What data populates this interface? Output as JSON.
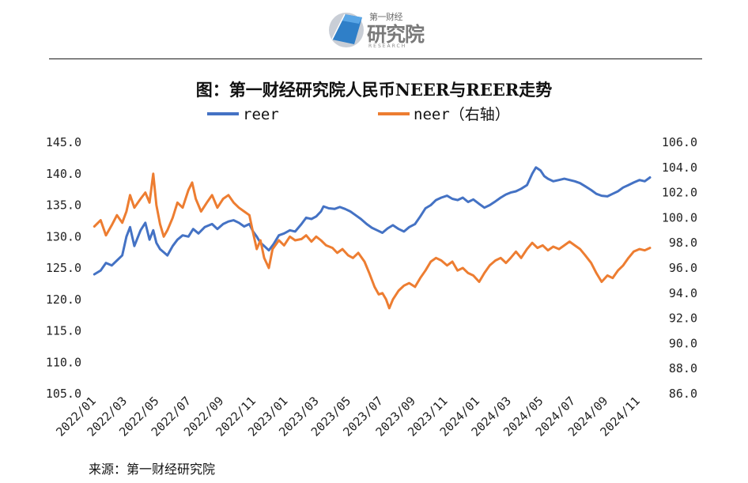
{
  "logo": {
    "small": "第一财经",
    "main": "研究院",
    "sub": "RESEARCH"
  },
  "title": "图：第一财经研究院人民币NEER与REER走势",
  "source": "来源：第一财经研究院",
  "colors": {
    "reer": "#4472C4",
    "neer": "#ED7D31"
  },
  "chart_data": {
    "type": "line",
    "title": "图：第一财经研究院人民币NEER与REER走势",
    "legend_position": "top",
    "grid": false,
    "y_left": {
      "range": [
        105,
        145
      ],
      "ticks": [
        "105.0",
        "110.0",
        "115.0",
        "120.0",
        "125.0",
        "130.0",
        "135.0",
        "140.0",
        "145.0"
      ]
    },
    "y_right": {
      "range": [
        86,
        106
      ],
      "ticks": [
        "86.0",
        "88.0",
        "90.0",
        "92.0",
        "94.0",
        "96.0",
        "98.0",
        "100.0",
        "102.0",
        "104.0",
        "106.0"
      ]
    },
    "x_range": [
      "2022-01-01",
      "2024-12-01"
    ],
    "x_ticks": [
      "2022/01",
      "2022/03",
      "2022/05",
      "2022/07",
      "2022/09",
      "2022/11",
      "2023/01",
      "2023/03",
      "2023/05",
      "2023/07",
      "2023/09",
      "2023/11",
      "2024/01",
      "2024/03",
      "2024/05",
      "2024/07",
      "2024/09",
      "2024/11"
    ],
    "series": [
      {
        "name": "reer",
        "axis": "left",
        "points": [
          [
            "2022-01-03",
            124.0
          ],
          [
            "2022-01-15",
            124.6
          ],
          [
            "2022-01-25",
            125.8
          ],
          [
            "2022-02-05",
            125.4
          ],
          [
            "2022-02-15",
            126.2
          ],
          [
            "2022-02-25",
            127.0
          ],
          [
            "2022-03-05",
            130.0
          ],
          [
            "2022-03-12",
            131.5
          ],
          [
            "2022-03-20",
            128.5
          ],
          [
            "2022-04-01",
            131.0
          ],
          [
            "2022-04-10",
            132.2
          ],
          [
            "2022-04-18",
            129.5
          ],
          [
            "2022-04-25",
            131.0
          ],
          [
            "2022-05-01",
            129.0
          ],
          [
            "2022-05-08",
            128.0
          ],
          [
            "2022-05-15",
            127.5
          ],
          [
            "2022-05-22",
            127.0
          ],
          [
            "2022-06-01",
            128.5
          ],
          [
            "2022-06-10",
            129.5
          ],
          [
            "2022-06-20",
            130.2
          ],
          [
            "2022-07-01",
            130.0
          ],
          [
            "2022-07-10",
            131.2
          ],
          [
            "2022-07-20",
            130.5
          ],
          [
            "2022-08-01",
            131.5
          ],
          [
            "2022-08-15",
            132.0
          ],
          [
            "2022-08-25",
            131.2
          ],
          [
            "2022-09-05",
            132.0
          ],
          [
            "2022-09-15",
            132.4
          ],
          [
            "2022-09-25",
            132.6
          ],
          [
            "2022-10-05",
            132.2
          ],
          [
            "2022-10-15",
            131.6
          ],
          [
            "2022-10-25",
            132.0
          ],
          [
            "2022-11-01",
            130.8
          ],
          [
            "2022-11-08",
            130.0
          ],
          [
            "2022-11-15",
            129.0
          ],
          [
            "2022-11-22",
            128.5
          ],
          [
            "2022-12-01",
            127.8
          ],
          [
            "2022-12-10",
            128.8
          ],
          [
            "2022-12-20",
            130.2
          ],
          [
            "2022-12-30",
            130.5
          ],
          [
            "2023-01-10",
            131.0
          ],
          [
            "2023-01-20",
            130.8
          ],
          [
            "2023-02-01",
            132.0
          ],
          [
            "2023-02-10",
            133.0
          ],
          [
            "2023-02-20",
            132.8
          ],
          [
            "2023-03-01",
            133.2
          ],
          [
            "2023-03-10",
            134.0
          ],
          [
            "2023-03-15",
            134.8
          ],
          [
            "2023-03-25",
            134.5
          ],
          [
            "2023-04-05",
            134.4
          ],
          [
            "2023-04-15",
            134.7
          ],
          [
            "2023-04-25",
            134.4
          ],
          [
            "2023-05-05",
            134.0
          ],
          [
            "2023-05-15",
            133.4
          ],
          [
            "2023-05-25",
            132.8
          ],
          [
            "2023-06-05",
            132.0
          ],
          [
            "2023-06-15",
            131.4
          ],
          [
            "2023-06-25",
            131.0
          ],
          [
            "2023-07-05",
            130.6
          ],
          [
            "2023-07-15",
            131.3
          ],
          [
            "2023-07-25",
            131.8
          ],
          [
            "2023-08-05",
            131.2
          ],
          [
            "2023-08-15",
            130.8
          ],
          [
            "2023-08-25",
            131.5
          ],
          [
            "2023-09-05",
            132.0
          ],
          [
            "2023-09-15",
            133.2
          ],
          [
            "2023-09-25",
            134.5
          ],
          [
            "2023-10-05",
            135.0
          ],
          [
            "2023-10-15",
            135.8
          ],
          [
            "2023-10-25",
            136.2
          ],
          [
            "2023-11-05",
            136.5
          ],
          [
            "2023-11-15",
            136.0
          ],
          [
            "2023-11-25",
            135.8
          ],
          [
            "2023-12-05",
            136.2
          ],
          [
            "2023-12-15",
            135.5
          ],
          [
            "2023-12-25",
            135.9
          ],
          [
            "2024-01-05",
            135.2
          ],
          [
            "2024-01-15",
            134.6
          ],
          [
            "2024-01-25",
            135.0
          ],
          [
            "2024-02-05",
            135.6
          ],
          [
            "2024-02-15",
            136.2
          ],
          [
            "2024-02-25",
            136.7
          ],
          [
            "2024-03-05",
            137.0
          ],
          [
            "2024-03-15",
            137.2
          ],
          [
            "2024-03-25",
            137.6
          ],
          [
            "2024-04-05",
            138.2
          ],
          [
            "2024-04-15",
            140.0
          ],
          [
            "2024-04-22",
            141.0
          ],
          [
            "2024-05-01",
            140.5
          ],
          [
            "2024-05-08",
            139.6
          ],
          [
            "2024-05-15",
            139.2
          ],
          [
            "2024-05-25",
            138.8
          ],
          [
            "2024-06-05",
            139.0
          ],
          [
            "2024-06-15",
            139.2
          ],
          [
            "2024-06-25",
            139.0
          ],
          [
            "2024-07-05",
            138.8
          ],
          [
            "2024-07-15",
            138.5
          ],
          [
            "2024-07-25",
            138.0
          ],
          [
            "2024-08-05",
            137.4
          ],
          [
            "2024-08-15",
            136.8
          ],
          [
            "2024-08-25",
            136.5
          ],
          [
            "2024-09-05",
            136.4
          ],
          [
            "2024-09-15",
            136.8
          ],
          [
            "2024-09-25",
            137.2
          ],
          [
            "2024-10-05",
            137.8
          ],
          [
            "2024-10-15",
            138.2
          ],
          [
            "2024-10-25",
            138.6
          ],
          [
            "2024-11-05",
            139.0
          ],
          [
            "2024-11-15",
            138.8
          ],
          [
            "2024-11-25",
            139.4
          ]
        ]
      },
      {
        "name": "neer（右轴）",
        "axis": "right",
        "points": [
          [
            "2022-01-03",
            99.3
          ],
          [
            "2022-01-15",
            99.8
          ],
          [
            "2022-01-25",
            98.6
          ],
          [
            "2022-02-05",
            99.4
          ],
          [
            "2022-02-15",
            100.2
          ],
          [
            "2022-02-25",
            99.6
          ],
          [
            "2022-03-05",
            100.5
          ],
          [
            "2022-03-12",
            101.8
          ],
          [
            "2022-03-20",
            100.8
          ],
          [
            "2022-04-01",
            101.5
          ],
          [
            "2022-04-10",
            102.0
          ],
          [
            "2022-04-18",
            101.2
          ],
          [
            "2022-04-25",
            103.5
          ],
          [
            "2022-05-01",
            101.0
          ],
          [
            "2022-05-08",
            99.5
          ],
          [
            "2022-05-15",
            98.5
          ],
          [
            "2022-05-22",
            99.0
          ],
          [
            "2022-06-01",
            100.0
          ],
          [
            "2022-06-10",
            101.2
          ],
          [
            "2022-06-20",
            100.8
          ],
          [
            "2022-07-01",
            102.2
          ],
          [
            "2022-07-08",
            102.8
          ],
          [
            "2022-07-15",
            101.5
          ],
          [
            "2022-07-25",
            100.5
          ],
          [
            "2022-08-05",
            101.2
          ],
          [
            "2022-08-15",
            101.8
          ],
          [
            "2022-08-25",
            100.8
          ],
          [
            "2022-09-05",
            101.5
          ],
          [
            "2022-09-15",
            101.8
          ],
          [
            "2022-09-25",
            101.2
          ],
          [
            "2022-10-05",
            100.8
          ],
          [
            "2022-10-15",
            100.5
          ],
          [
            "2022-10-25",
            100.2
          ],
          [
            "2022-11-01",
            98.8
          ],
          [
            "2022-11-08",
            97.5
          ],
          [
            "2022-11-15",
            98.2
          ],
          [
            "2022-11-22",
            96.8
          ],
          [
            "2022-12-01",
            96.0
          ],
          [
            "2022-12-08",
            97.5
          ],
          [
            "2022-12-20",
            98.2
          ],
          [
            "2022-12-30",
            97.8
          ],
          [
            "2023-01-10",
            98.5
          ],
          [
            "2023-01-20",
            98.2
          ],
          [
            "2023-02-01",
            98.3
          ],
          [
            "2023-02-10",
            98.6
          ],
          [
            "2023-02-20",
            98.1
          ],
          [
            "2023-03-01",
            98.5
          ],
          [
            "2023-03-10",
            98.2
          ],
          [
            "2023-03-20",
            97.8
          ],
          [
            "2023-04-01",
            97.6
          ],
          [
            "2023-04-10",
            97.2
          ],
          [
            "2023-04-20",
            97.5
          ],
          [
            "2023-05-01",
            97.0
          ],
          [
            "2023-05-10",
            96.8
          ],
          [
            "2023-05-20",
            97.2
          ],
          [
            "2023-06-01",
            96.5
          ],
          [
            "2023-06-10",
            95.6
          ],
          [
            "2023-06-20",
            94.5
          ],
          [
            "2023-06-28",
            93.9
          ],
          [
            "2023-07-05",
            94.0
          ],
          [
            "2023-07-12",
            93.5
          ],
          [
            "2023-07-18",
            92.8
          ],
          [
            "2023-07-25",
            93.5
          ],
          [
            "2023-08-05",
            94.2
          ],
          [
            "2023-08-15",
            94.6
          ],
          [
            "2023-08-25",
            94.8
          ],
          [
            "2023-09-05",
            94.5
          ],
          [
            "2023-09-15",
            95.2
          ],
          [
            "2023-09-25",
            95.8
          ],
          [
            "2023-10-05",
            96.5
          ],
          [
            "2023-10-15",
            96.8
          ],
          [
            "2023-10-25",
            96.6
          ],
          [
            "2023-11-05",
            96.2
          ],
          [
            "2023-11-15",
            96.5
          ],
          [
            "2023-11-25",
            95.8
          ],
          [
            "2023-12-05",
            96.0
          ],
          [
            "2023-12-15",
            95.6
          ],
          [
            "2023-12-25",
            95.4
          ],
          [
            "2024-01-05",
            94.9
          ],
          [
            "2024-01-15",
            95.6
          ],
          [
            "2024-01-25",
            96.2
          ],
          [
            "2024-02-05",
            96.6
          ],
          [
            "2024-02-15",
            96.8
          ],
          [
            "2024-02-25",
            96.4
          ],
          [
            "2024-03-05",
            96.8
          ],
          [
            "2024-03-15",
            97.3
          ],
          [
            "2024-03-25",
            96.8
          ],
          [
            "2024-04-05",
            97.5
          ],
          [
            "2024-04-15",
            98.0
          ],
          [
            "2024-04-25",
            97.6
          ],
          [
            "2024-05-05",
            97.8
          ],
          [
            "2024-05-15",
            97.4
          ],
          [
            "2024-05-25",
            97.7
          ],
          [
            "2024-06-05",
            97.5
          ],
          [
            "2024-06-15",
            97.8
          ],
          [
            "2024-06-25",
            98.1
          ],
          [
            "2024-07-05",
            97.8
          ],
          [
            "2024-07-15",
            97.5
          ],
          [
            "2024-07-25",
            97.0
          ],
          [
            "2024-08-05",
            96.4
          ],
          [
            "2024-08-15",
            95.6
          ],
          [
            "2024-08-25",
            94.9
          ],
          [
            "2024-09-05",
            95.4
          ],
          [
            "2024-09-15",
            95.2
          ],
          [
            "2024-09-25",
            95.8
          ],
          [
            "2024-10-05",
            96.2
          ],
          [
            "2024-10-15",
            96.8
          ],
          [
            "2024-10-25",
            97.3
          ],
          [
            "2024-11-05",
            97.5
          ],
          [
            "2024-11-15",
            97.4
          ],
          [
            "2024-11-25",
            97.6
          ]
        ]
      }
    ]
  }
}
